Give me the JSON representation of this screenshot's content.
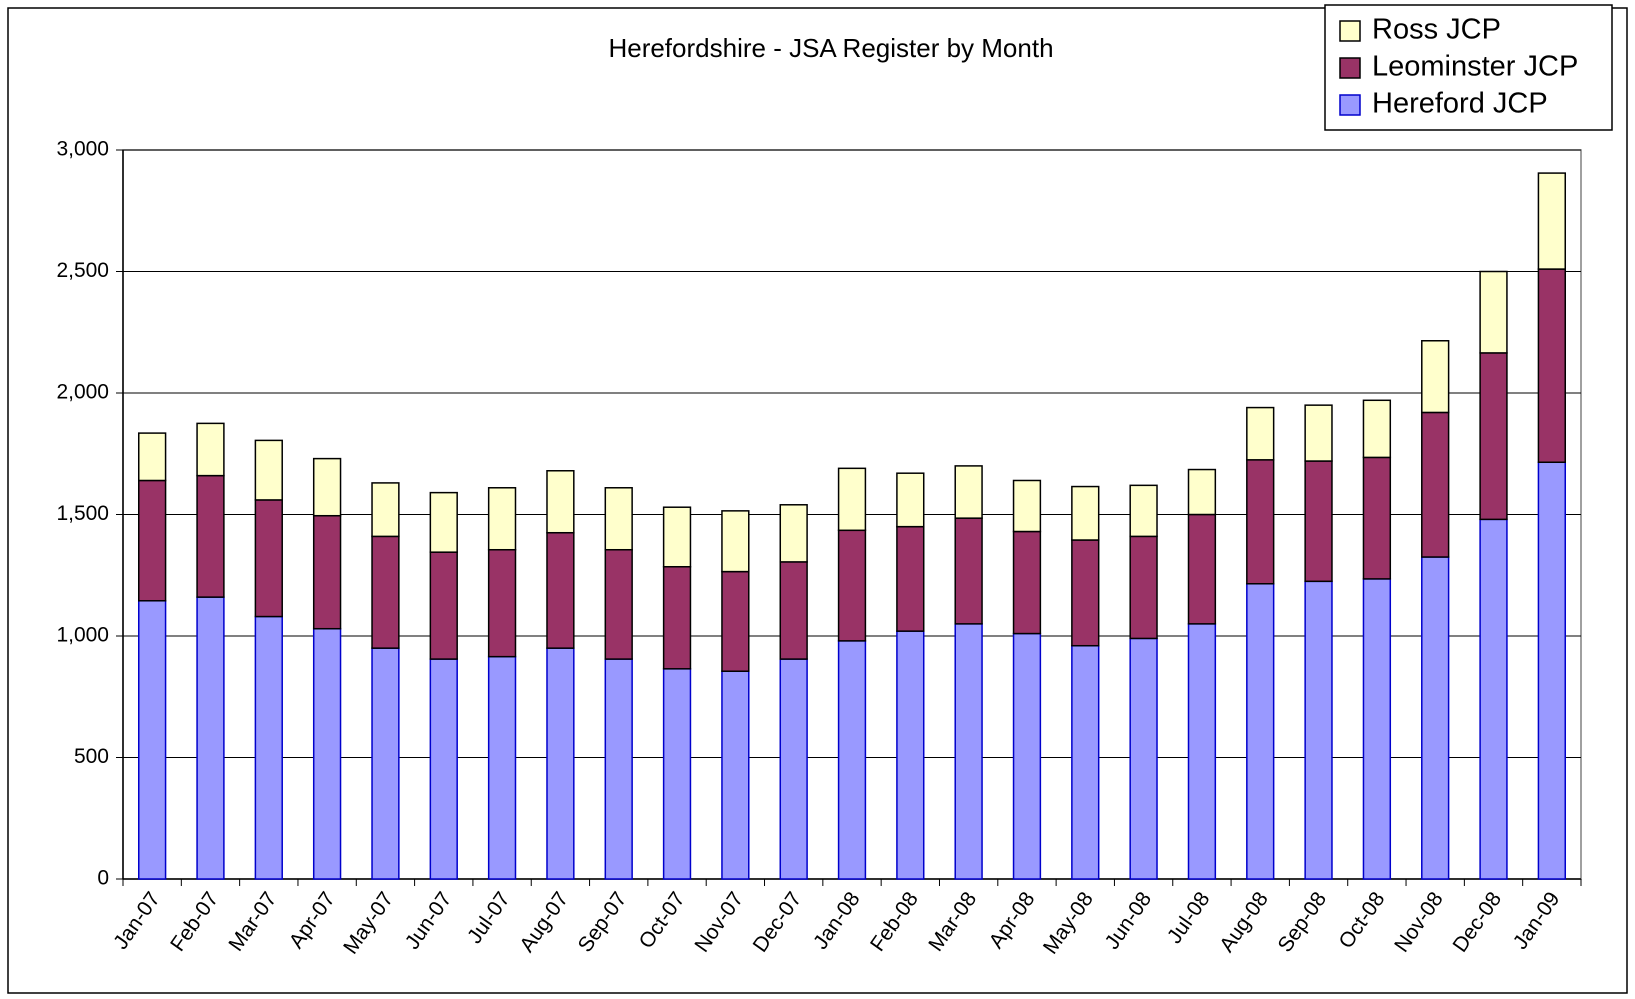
{
  "chart_data": {
    "type": "stacked_bar",
    "title": "Herefordshire - JSA Register by Month",
    "categories": [
      "Jan-07",
      "Feb-07",
      "Mar-07",
      "Apr-07",
      "May-07",
      "Jun-07",
      "Jul-07",
      "Aug-07",
      "Sep-07",
      "Oct-07",
      "Nov-07",
      "Dec-07",
      "Jan-08",
      "Feb-08",
      "Mar-08",
      "Apr-08",
      "May-08",
      "Jun-08",
      "Jul-08",
      "Aug-08",
      "Sep-08",
      "Oct-08",
      "Nov-08",
      "Dec-08",
      "Jan-09"
    ],
    "series": [
      {
        "name": "Hereford JCP",
        "color": "#9999ff",
        "values": [
          1145,
          1160,
          1080,
          1030,
          950,
          905,
          915,
          950,
          905,
          865,
          855,
          905,
          980,
          1020,
          1050,
          1010,
          960,
          990,
          1050,
          1215,
          1225,
          1235,
          1325,
          1480,
          1715
        ]
      },
      {
        "name": "Leominster JCP",
        "color": "#993366",
        "values": [
          495,
          500,
          480,
          465,
          460,
          440,
          440,
          475,
          450,
          420,
          410,
          400,
          455,
          430,
          435,
          420,
          435,
          420,
          450,
          510,
          495,
          500,
          595,
          685,
          795
        ]
      },
      {
        "name": "Ross JCP",
        "color": "#ffffcc",
        "values": [
          195,
          215,
          245,
          235,
          220,
          245,
          255,
          255,
          255,
          245,
          250,
          235,
          255,
          220,
          215,
          210,
          220,
          210,
          185,
          215,
          230,
          235,
          295,
          335,
          395
        ]
      }
    ],
    "ylim": [
      0,
      3000
    ],
    "yticks": [
      0,
      500,
      {
        "value": 1000,
        "label": "1,000"
      },
      {
        "value": 1500,
        "label": "1,500"
      },
      {
        "value": 2000,
        "label": "2,000"
      },
      {
        "value": 2500,
        "label": "2,500"
      },
      {
        "value": 3000,
        "label": "3,000"
      }
    ],
    "grid": true,
    "legend": "top-right"
  }
}
